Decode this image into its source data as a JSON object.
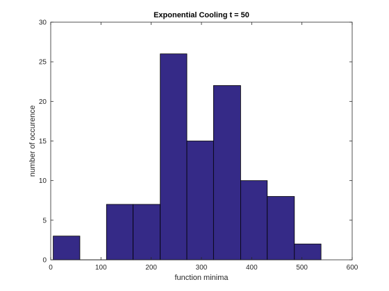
{
  "chart_data": {
    "type": "bar",
    "title": "Exponential Cooling t = 50",
    "xlabel": "function minima",
    "ylabel": "number of occurence",
    "xlim": [
      0,
      600
    ],
    "ylim": [
      0,
      30
    ],
    "xticks": [
      0,
      100,
      200,
      300,
      400,
      500,
      600
    ],
    "yticks": [
      0,
      5,
      10,
      15,
      20,
      25,
      30
    ],
    "grid": false,
    "bins": [
      {
        "x0": 5,
        "x1": 58,
        "value": 3
      },
      {
        "x0": 58,
        "x1": 111,
        "value": 0
      },
      {
        "x0": 111,
        "x1": 164,
        "value": 7
      },
      {
        "x0": 164,
        "x1": 218,
        "value": 7
      },
      {
        "x0": 218,
        "x1": 271,
        "value": 26
      },
      {
        "x0": 271,
        "x1": 324,
        "value": 15
      },
      {
        "x0": 324,
        "x1": 378,
        "value": 22
      },
      {
        "x0": 378,
        "x1": 431,
        "value": 10
      },
      {
        "x0": 431,
        "x1": 485,
        "value": 8
      },
      {
        "x0": 485,
        "x1": 538,
        "value": 2
      }
    ],
    "bar_color": "#352a87",
    "edge_color": "#000000"
  }
}
